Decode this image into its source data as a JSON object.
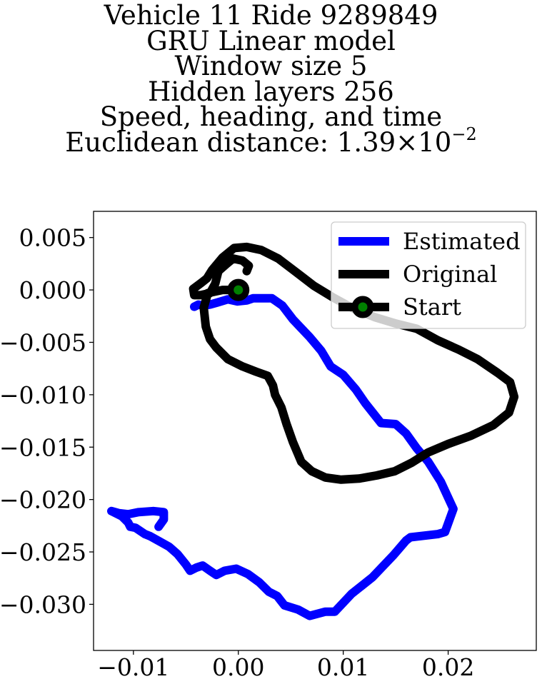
{
  "chart_data": {
    "type": "line",
    "title_lines": [
      "Vehicle 11 Ride 9289849",
      "GRU Linear model",
      "Window size 5",
      "Hidden layers 256",
      "Speed, heading, and time"
    ],
    "metric_label": "Euclidean distance: ",
    "metric_mantissa": "1.39",
    "metric_times": "×",
    "metric_base": "10",
    "metric_exponent": "−2",
    "xlim": [
      -0.0138,
      0.0284
    ],
    "ylim": [
      -0.0344,
      0.0075
    ],
    "x_ticks": [
      {
        "value": -0.01,
        "label": "−0.01"
      },
      {
        "value": 0.0,
        "label": "0.00"
      },
      {
        "value": 0.01,
        "label": "0.01"
      },
      {
        "value": 0.02,
        "label": "0.02"
      }
    ],
    "y_ticks": [
      {
        "value": 0.005,
        "label": "0.005"
      },
      {
        "value": 0.0,
        "label": "0.000"
      },
      {
        "value": -0.005,
        "label": "−0.005"
      },
      {
        "value": -0.01,
        "label": "−0.010"
      },
      {
        "value": -0.015,
        "label": "−0.015"
      },
      {
        "value": -0.02,
        "label": "−0.020"
      },
      {
        "value": -0.025,
        "label": "−0.025"
      },
      {
        "value": -0.03,
        "label": "−0.030"
      }
    ],
    "legend_position": "top-right",
    "grid": false,
    "series": [
      {
        "name": "Estimated",
        "color": "#0000ff",
        "points": [
          [
            -0.0042,
            -0.0016
          ],
          [
            -0.0038,
            -0.0014
          ],
          [
            -0.0033,
            -0.0015
          ],
          [
            -0.0027,
            -0.0014
          ],
          [
            -0.002,
            -0.0012
          ],
          [
            -0.001,
            -0.0009
          ],
          [
            -0.0001,
            -0.0011
          ],
          [
            0.0008,
            -0.001
          ],
          [
            0.0014,
            -0.0008
          ],
          [
            0.0025,
            -0.0008
          ],
          [
            0.0032,
            -0.0008
          ],
          [
            0.0042,
            -0.0015
          ],
          [
            0.0052,
            -0.0028
          ],
          [
            0.0068,
            -0.0045
          ],
          [
            0.0079,
            -0.0058
          ],
          [
            0.0088,
            -0.0073
          ],
          [
            0.01,
            -0.0081
          ],
          [
            0.0112,
            -0.0095
          ],
          [
            0.0121,
            -0.0108
          ],
          [
            0.0136,
            -0.0127
          ],
          [
            0.015,
            -0.0128
          ],
          [
            0.016,
            -0.0137
          ],
          [
            0.017,
            -0.0151
          ],
          [
            0.0181,
            -0.0164
          ],
          [
            0.0193,
            -0.0183
          ],
          [
            0.0205,
            -0.0209
          ],
          [
            0.0197,
            -0.0231
          ],
          [
            0.019,
            -0.0233
          ],
          [
            0.0164,
            -0.0236
          ],
          [
            0.016,
            -0.0239
          ],
          [
            0.0148,
            -0.0253
          ],
          [
            0.0128,
            -0.0274
          ],
          [
            0.0108,
            -0.029
          ],
          [
            0.0092,
            -0.0307
          ],
          [
            0.0083,
            -0.0307
          ],
          [
            0.0068,
            -0.0311
          ],
          [
            0.0057,
            -0.0305
          ],
          [
            0.0044,
            -0.0301
          ],
          [
            0.0037,
            -0.0292
          ],
          [
            0.0029,
            -0.0288
          ],
          [
            0.002,
            -0.0279
          ],
          [
            0.0009,
            -0.0271
          ],
          [
            -0.0002,
            -0.0266
          ],
          [
            -0.0013,
            -0.0268
          ],
          [
            -0.0021,
            -0.0272
          ],
          [
            -0.0027,
            -0.0268
          ],
          [
            -0.0034,
            -0.0263
          ],
          [
            -0.004,
            -0.0265
          ],
          [
            -0.0046,
            -0.0268
          ],
          [
            -0.005,
            -0.0262
          ],
          [
            -0.0058,
            -0.0252
          ],
          [
            -0.0066,
            -0.0245
          ],
          [
            -0.0075,
            -0.024
          ],
          [
            -0.0084,
            -0.0235
          ],
          [
            -0.0089,
            -0.0233
          ],
          [
            -0.0098,
            -0.0227
          ],
          [
            -0.0103,
            -0.0226
          ],
          [
            -0.0105,
            -0.0222
          ],
          [
            -0.0111,
            -0.0216
          ],
          [
            -0.0121,
            -0.0211
          ],
          [
            -0.0114,
            -0.0213
          ],
          [
            -0.0105,
            -0.0214
          ],
          [
            -0.0095,
            -0.0212
          ],
          [
            -0.0081,
            -0.0211
          ],
          [
            -0.0071,
            -0.0212
          ],
          [
            -0.0071,
            -0.0219
          ],
          [
            -0.0076,
            -0.0226
          ]
        ]
      },
      {
        "name": "Original",
        "color": "#000000",
        "points": [
          [
            0.0,
            0.0
          ],
          [
            -0.0015,
            0.0
          ],
          [
            -0.0029,
            -0.0003
          ],
          [
            -0.0033,
            -0.0017
          ],
          [
            -0.0031,
            -0.0035
          ],
          [
            -0.0027,
            -0.0047
          ],
          [
            -0.0021,
            -0.0055
          ],
          [
            -0.001,
            -0.0066
          ],
          [
            0.0004,
            -0.0073
          ],
          [
            0.0017,
            -0.0078
          ],
          [
            0.0028,
            -0.0082
          ],
          [
            0.0033,
            -0.0091
          ],
          [
            0.0035,
            -0.01
          ],
          [
            0.0041,
            -0.0112
          ],
          [
            0.0046,
            -0.0128
          ],
          [
            0.0052,
            -0.0145
          ],
          [
            0.006,
            -0.0164
          ],
          [
            0.007,
            -0.0173
          ],
          [
            0.0083,
            -0.0179
          ],
          [
            0.0098,
            -0.0181
          ],
          [
            0.0115,
            -0.018
          ],
          [
            0.0132,
            -0.0177
          ],
          [
            0.0149,
            -0.0173
          ],
          [
            0.0165,
            -0.0165
          ],
          [
            0.0181,
            -0.0155
          ],
          [
            0.02,
            -0.0147
          ],
          [
            0.0222,
            -0.0139
          ],
          [
            0.0243,
            -0.0129
          ],
          [
            0.0258,
            -0.0117
          ],
          [
            0.0263,
            -0.0102
          ],
          [
            0.0259,
            -0.0088
          ],
          [
            0.0247,
            -0.0079
          ],
          [
            0.0228,
            -0.0066
          ],
          [
            0.021,
            -0.0057
          ],
          [
            0.019,
            -0.0048
          ],
          [
            0.017,
            -0.0037
          ],
          [
            0.015,
            -0.0032
          ],
          [
            0.013,
            -0.0026
          ],
          [
            0.011,
            -0.0018
          ],
          [
            0.009,
            -0.0007
          ],
          [
            0.0072,
            0.0004
          ],
          [
            0.0055,
            0.0017
          ],
          [
            0.0038,
            0.003
          ],
          [
            0.0022,
            0.0038
          ],
          [
            0.0008,
            0.0041
          ],
          [
            -0.0004,
            0.004
          ],
          [
            -0.0015,
            0.0031
          ],
          [
            -0.0025,
            0.0019
          ],
          [
            -0.003,
            0.0011
          ],
          [
            -0.0035,
            0.0007
          ],
          [
            -0.0043,
            0.0001
          ],
          [
            -0.0042,
            -0.0005
          ],
          [
            -0.0036,
            -0.0005
          ],
          [
            -0.0027,
            -0.0003
          ],
          [
            -0.0022,
            0.0006
          ],
          [
            -0.0019,
            0.0018
          ],
          [
            -0.0011,
            0.0025
          ],
          [
            -0.0005,
            0.003
          ],
          [
            0.0004,
            0.0028
          ],
          [
            0.001,
            0.0023
          ],
          [
            0.0008,
            0.0018
          ]
        ]
      },
      {
        "name": "Start",
        "color": "#000000",
        "marker_face": "#008000",
        "points": [
          [
            0.0,
            0.0
          ]
        ]
      }
    ]
  }
}
